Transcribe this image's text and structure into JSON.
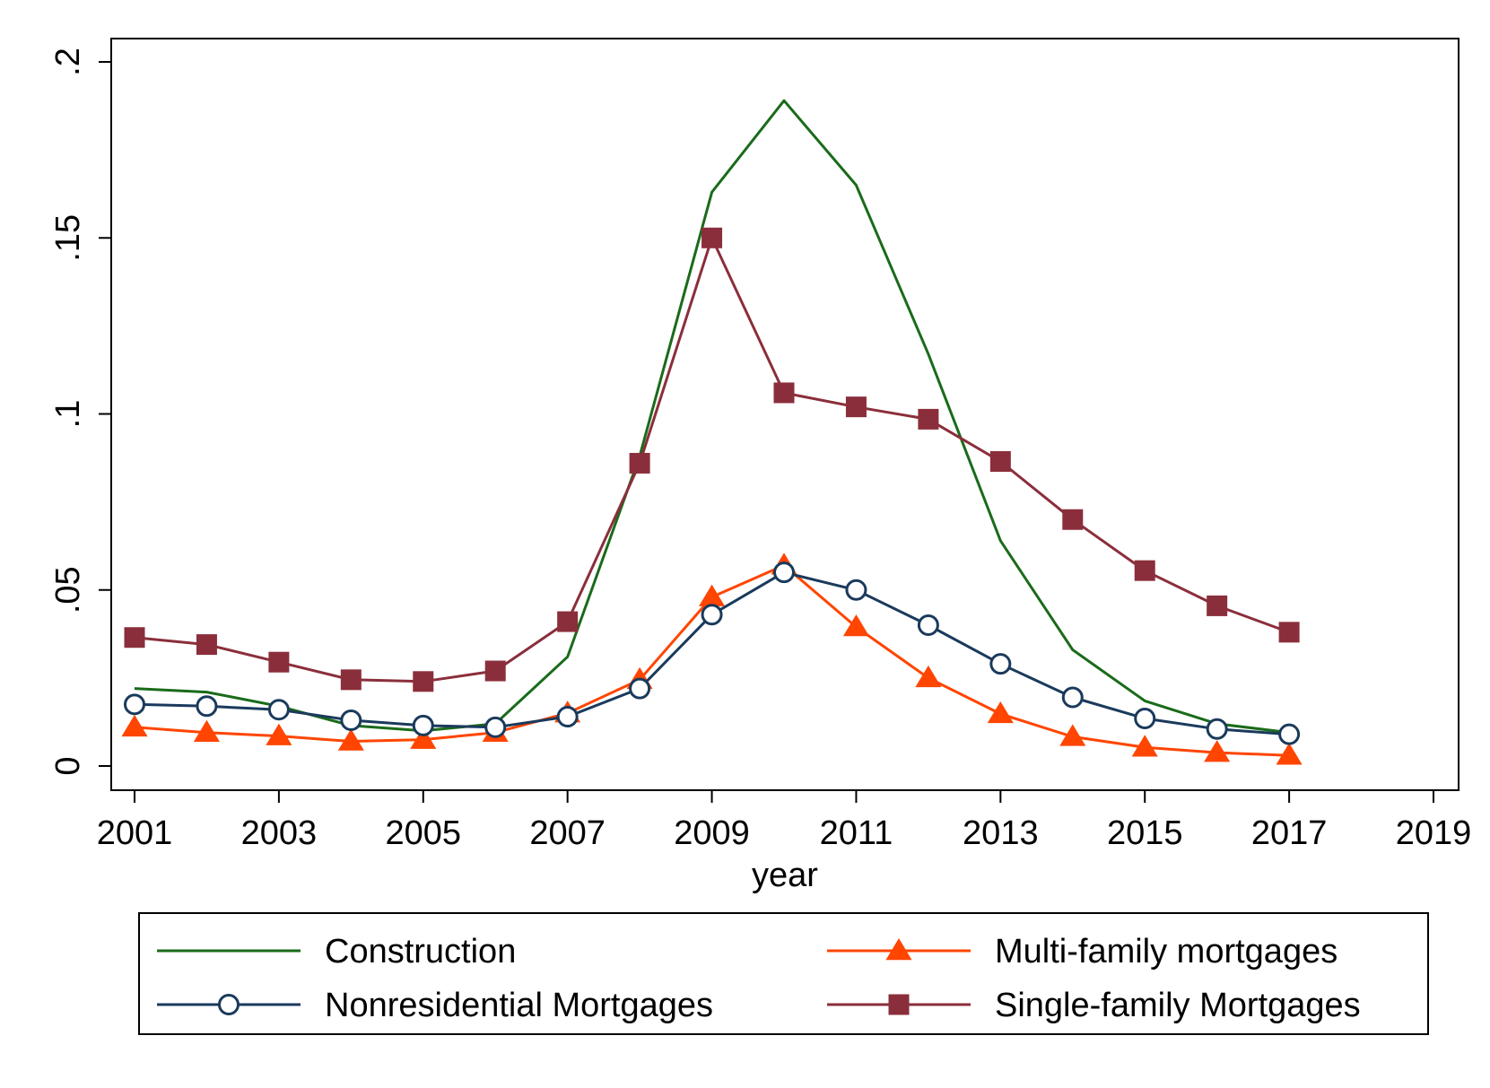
{
  "chart_data": {
    "type": "line",
    "title": "",
    "xlabel": "year",
    "ylabel": "",
    "xlim": [
      2001,
      2019
    ],
    "ylim": [
      0,
      0.2
    ],
    "x_ticks": [
      2001,
      2003,
      2005,
      2007,
      2009,
      2011,
      2013,
      2015,
      2017,
      2019
    ],
    "x_tick_labels": [
      "2001",
      "2003",
      "2005",
      "2007",
      "2009",
      "2011",
      "2013",
      "2015",
      "2017",
      "2019"
    ],
    "y_ticks": [
      0,
      0.05,
      0.1,
      0.15,
      0.2
    ],
    "y_tick_labels": [
      "0",
      ".05",
      ".1",
      ".15",
      ".2"
    ],
    "grid": false,
    "legend_position": "bottom",
    "x": [
      2001,
      2002,
      2003,
      2004,
      2005,
      2006,
      2007,
      2008,
      2009,
      2010,
      2011,
      2012,
      2013,
      2014,
      2015,
      2016,
      2017
    ],
    "series": [
      {
        "name": "Construction",
        "color": "#1a6b1a",
        "marker": "none",
        "values": [
          0.022,
          0.021,
          0.017,
          0.0115,
          0.01,
          0.012,
          0.031,
          0.088,
          0.163,
          0.189,
          0.165,
          0.117,
          0.064,
          0.033,
          0.0185,
          0.012,
          0.0095
        ]
      },
      {
        "name": "Multi-family mortgages",
        "color": "#ff4500",
        "marker": "triangle",
        "values": [
          0.011,
          0.0095,
          0.0085,
          0.007,
          0.0075,
          0.0095,
          0.015,
          0.0245,
          0.048,
          0.057,
          0.0395,
          0.025,
          0.0148,
          0.0083,
          0.0053,
          0.0038,
          0.003
        ]
      },
      {
        "name": "Nonresidential Mortgages",
        "color": "#1a3a5c",
        "marker": "circle",
        "values": [
          0.0175,
          0.017,
          0.016,
          0.013,
          0.0115,
          0.011,
          0.014,
          0.022,
          0.043,
          0.055,
          0.05,
          0.04,
          0.029,
          0.0195,
          0.0135,
          0.0105,
          0.009
        ]
      },
      {
        "name": "Single-family Mortgages",
        "color": "#8b2e3b",
        "marker": "square",
        "values": [
          0.0365,
          0.0345,
          0.0295,
          0.0245,
          0.024,
          0.027,
          0.041,
          0.086,
          0.15,
          0.106,
          0.102,
          0.0985,
          0.0865,
          0.07,
          0.0555,
          0.0455,
          0.038
        ]
      }
    ],
    "legend_entries": [
      {
        "label": "Construction",
        "series": 0
      },
      {
        "label": "Multi-family mortgages",
        "series": 1
      },
      {
        "label": "Nonresidential Mortgages",
        "series": 2
      },
      {
        "label": "Single-family Mortgages",
        "series": 3
      }
    ]
  }
}
